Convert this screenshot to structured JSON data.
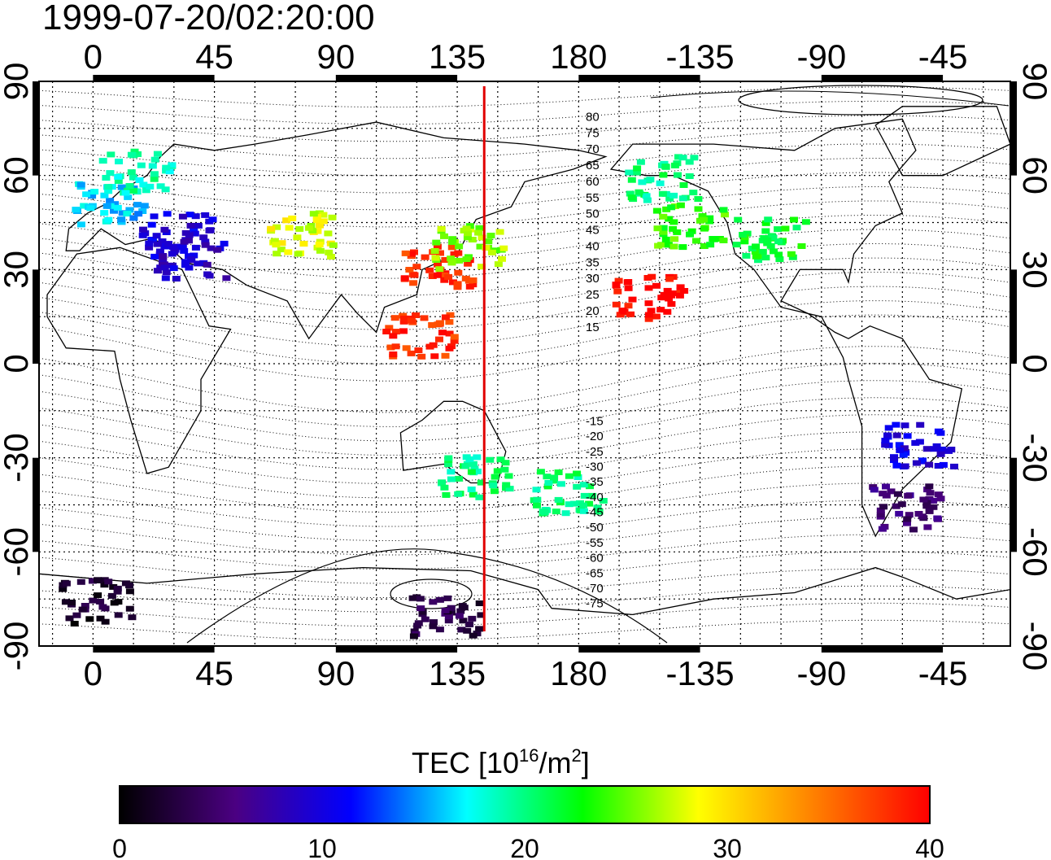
{
  "title": "1999-07-20/02:20:00",
  "top_lon_ticks": [
    "0",
    "45",
    "90",
    "135",
    "180",
    "-135",
    "-90",
    "-45"
  ],
  "bottom_lon_ticks": [
    "0",
    "45",
    "90",
    "135",
    "180",
    "-135",
    "-90",
    "-45"
  ],
  "lat_ticks": [
    "90",
    "60",
    "30",
    "0",
    "-30",
    "-60",
    "-90"
  ],
  "contour_labels": [
    "80",
    "75",
    "70",
    "65",
    "60",
    "55",
    "50",
    "45",
    "40",
    "35",
    "30",
    "25",
    "20",
    "15",
    "-15",
    "-20",
    "-25",
    "-30",
    "-35",
    "-40",
    "-45",
    "-50",
    "-55",
    "-60",
    "-65",
    "-70",
    "-75"
  ],
  "meridian_lon": 145,
  "colorbar": {
    "title_main": "TEC  [10",
    "title_exp1": "16",
    "title_mid": "/m",
    "title_exp2": "2",
    "title_end": "]",
    "tick_labels": [
      "0",
      "10",
      "20",
      "30",
      "40"
    ],
    "min": 0,
    "max": 40,
    "stops": [
      "#000000",
      "#4b0082",
      "#0000ff",
      "#00ffff",
      "#00ff00",
      "#ffff00",
      "#ff8000",
      "#ff0000"
    ]
  },
  "colors": {
    "meridian": "#e00000"
  },
  "chart_data": {
    "type": "heatmap",
    "title": "1999-07-20/02:20:00",
    "xlim": [
      -20,
      340
    ],
    "ylim": [
      -90,
      90
    ],
    "value_range": [
      0,
      40
    ],
    "clusters": [
      {
        "lon": 5,
        "lat": 52,
        "tec": 16
      },
      {
        "lon": 15,
        "lat": 62,
        "tec": 19
      },
      {
        "lon": 30,
        "lat": 42,
        "tec": 10
      },
      {
        "lon": 35,
        "lat": 35,
        "tec": 9
      },
      {
        "lon": 75,
        "lat": 42,
        "tec": 28
      },
      {
        "lon": 127,
        "lat": 32,
        "tec": 38
      },
      {
        "lon": 138,
        "lat": 38,
        "tec": 26
      },
      {
        "lon": 120,
        "lat": 10,
        "tec": 38
      },
      {
        "lon": 205,
        "lat": 22,
        "tec": 40
      },
      {
        "lon": 220,
        "lat": 45,
        "tec": 24
      },
      {
        "lon": 250,
        "lat": 40,
        "tec": 22
      },
      {
        "lon": 210,
        "lat": 60,
        "tec": 20
      },
      {
        "lon": 140,
        "lat": -35,
        "tec": 20
      },
      {
        "lon": 175,
        "lat": -40,
        "tec": 20
      },
      {
        "lon": 305,
        "lat": -25,
        "tec": 10
      },
      {
        "lon": 300,
        "lat": -45,
        "tec": 5
      },
      {
        "lon": 0,
        "lat": -75,
        "tec": 2
      },
      {
        "lon": 130,
        "lat": -80,
        "tec": 3
      }
    ]
  }
}
